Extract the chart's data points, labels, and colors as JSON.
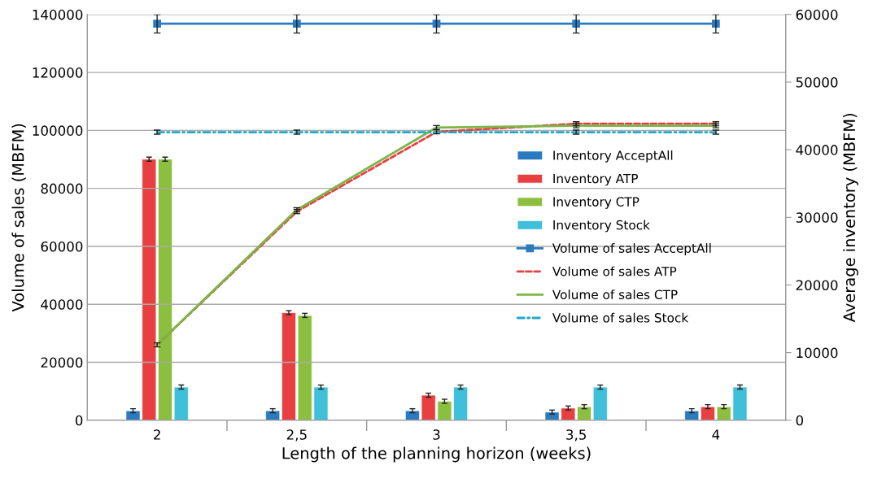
{
  "chart_data": {
    "type": "bar",
    "xlabel": "Length of the planning horizon (weeks)",
    "ylabel": "Volume of sales (MBFM)",
    "y2label": "Average inventory (MBFM)",
    "categories": [
      "2",
      "2,5",
      "3",
      "3,5",
      "4"
    ],
    "ylim": [
      0,
      140000
    ],
    "yticks": [
      0,
      20000,
      40000,
      60000,
      80000,
      100000,
      120000,
      140000
    ],
    "y2lim": [
      0,
      60000
    ],
    "y2ticks": [
      0,
      10000,
      20000,
      30000,
      40000,
      50000,
      60000
    ],
    "grid": "y",
    "legend": "right",
    "series": [
      {
        "name": "Inventory AcceptAll",
        "axis": "y2",
        "color": "#2a7abf",
        "values": [
          1400,
          1400,
          1400,
          1200,
          1400
        ],
        "errors": [
          300,
          300,
          300,
          300,
          300
        ]
      },
      {
        "name": "Inventory ATP",
        "axis": "y2",
        "color": "#e84040",
        "values": [
          38600,
          15900,
          3700,
          1800,
          2000
        ],
        "errors": [
          300,
          300,
          300,
          300,
          300
        ]
      },
      {
        "name": "Inventory CTP",
        "axis": "y2",
        "color": "#8cbf3f",
        "values": [
          38600,
          15500,
          2800,
          2000,
          2000
        ],
        "errors": [
          300,
          300,
          300,
          300,
          300
        ]
      },
      {
        "name": "Inventory Stock",
        "axis": "y2",
        "color": "#3fbfd9",
        "values": [
          4900,
          4900,
          4900,
          4900,
          4900
        ],
        "errors": [
          300,
          300,
          300,
          300,
          300
        ]
      },
      {
        "name": "Volume of sales AcceptAll",
        "type": "line",
        "color": "#2a7abf",
        "marker": "square",
        "line_style": "solid",
        "values": [
          136800,
          136800,
          136800,
          136800,
          136800
        ],
        "errors": [
          3200,
          3200,
          3200,
          3200,
          3200
        ]
      },
      {
        "name": "Volume of sales ATP",
        "type": "line",
        "color": "#e84040",
        "marker": "none",
        "line_style": "dashed",
        "values": [
          26000,
          72000,
          99500,
          102300,
          102300
        ],
        "errors": [
          700,
          700,
          700,
          700,
          700
        ]
      },
      {
        "name": "Volume of sales CTP",
        "type": "line",
        "color": "#7ab648",
        "marker": "none",
        "line_style": "solid",
        "values": [
          26000,
          72600,
          101000,
          101600,
          101600
        ],
        "errors": [
          null,
          700,
          700,
          700,
          700
        ]
      },
      {
        "name": "Volume of sales Stock",
        "type": "line",
        "color": "#1fa9c9",
        "marker": "none",
        "line_style": "dashdot",
        "values": [
          99400,
          99400,
          99400,
          99400,
          99400
        ],
        "errors": [
          700,
          700,
          null,
          700,
          700
        ]
      }
    ]
  }
}
